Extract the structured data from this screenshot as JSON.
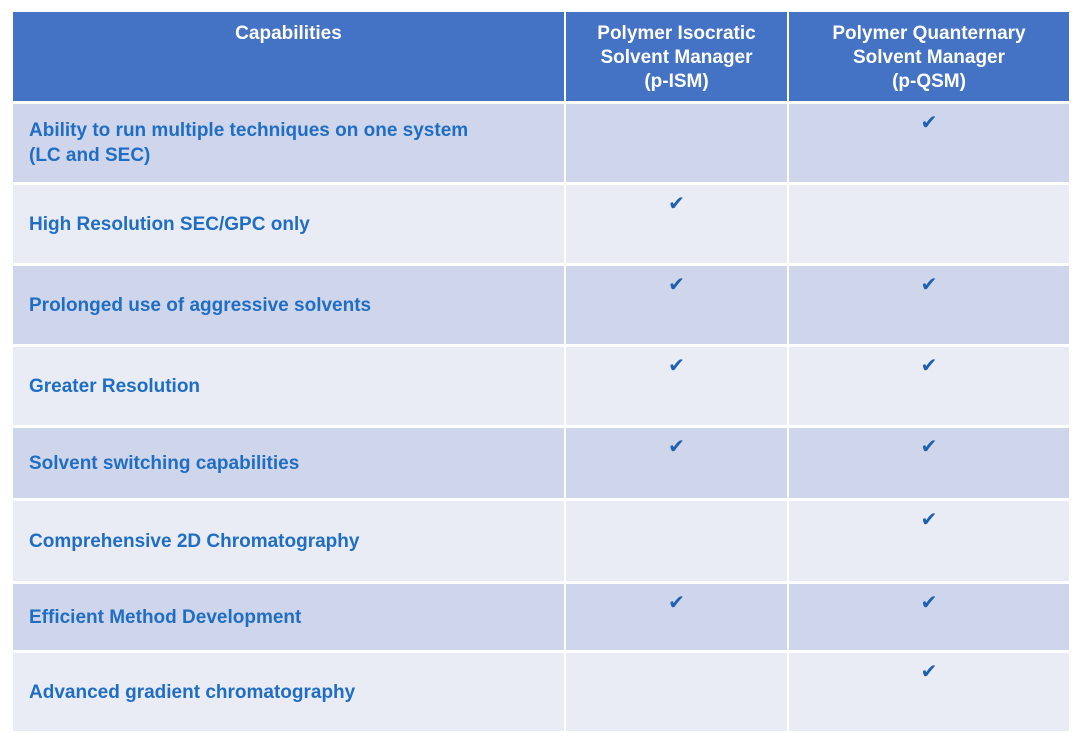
{
  "table": {
    "headers": [
      "Capabilities",
      "Polymer Isocratic\nSolvent Manager\n(p-ISM)",
      "Polymer Quanternary\nSolvent Manager\n(p-QSM)"
    ],
    "rows": [
      {
        "label": "Ability to run multiple techniques on one system\n(LC and SEC)",
        "p_ism": "",
        "p_qsm": "✔"
      },
      {
        "label": "High Resolution SEC/GPC only",
        "p_ism": "✔",
        "p_qsm": ""
      },
      {
        "label": "Prolonged use of aggressive solvents",
        "p_ism": "✔",
        "p_qsm": "✔"
      },
      {
        "label": "Greater Resolution",
        "p_ism": "✔",
        "p_qsm": "✔"
      },
      {
        "label": "Solvent switching capabilities",
        "p_ism": "✔",
        "p_qsm": "✔"
      },
      {
        "label": "Comprehensive 2D Chromatography",
        "p_ism": "",
        "p_qsm": "✔"
      },
      {
        "label": "Efficient Method Development",
        "p_ism": "✔",
        "p_qsm": "✔"
      },
      {
        "label": "Advanced gradient chromatography",
        "p_ism": "",
        "p_qsm": "✔"
      }
    ]
  },
  "colors": {
    "header_bg": "#4472c4",
    "row_dark": "#cfd5ea",
    "row_light": "#e9ebf5",
    "label_text": "#1f6ec4",
    "check": "#2060b0"
  },
  "icons": {
    "check": "check-icon"
  }
}
